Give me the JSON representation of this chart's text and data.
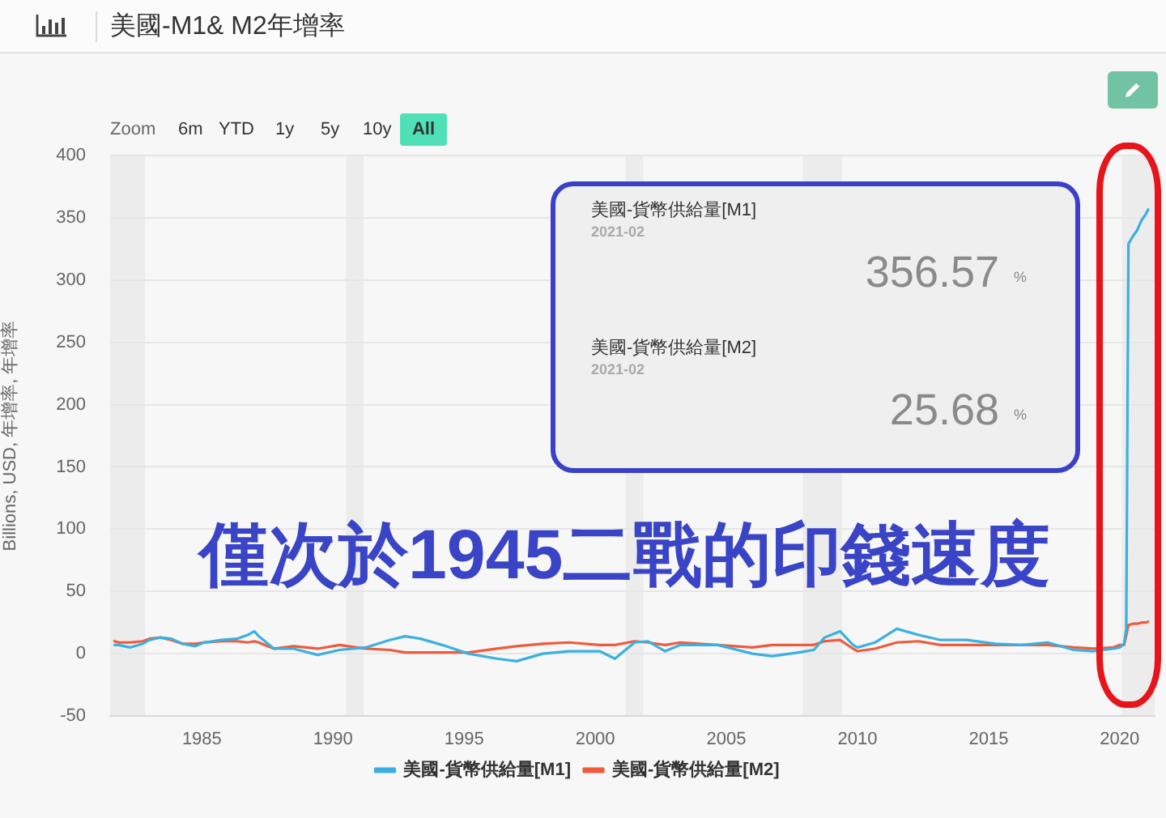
{
  "chart_data": {
    "type": "line",
    "title": "美國-M1& M2年增率",
    "ylabel": "Billions, USD, 年增率, 年增率",
    "x": [
      "1981-09",
      "1981-11",
      "1982-04",
      "1982-10",
      "1983-01",
      "1983-06",
      "1983-11",
      "1984-04",
      "1984-10",
      "1985-02",
      "1985-10",
      "1986-05",
      "1986-10",
      "1987-01",
      "1987-03",
      "1987-10",
      "1988-07",
      "1989-06",
      "1990-04",
      "1991-04",
      "1992-03",
      "1992-10",
      "1993-05",
      "1994-03",
      "1995-03",
      "1996-04",
      "1997-01",
      "1998-01",
      "1999-01",
      "2000-03",
      "2000-10",
      "2001-07",
      "2002-01",
      "2002-09",
      "2003-04",
      "2004-09",
      "2006-01",
      "2006-10",
      "2007-10",
      "2008-05",
      "2008-10",
      "2009-05",
      "2009-11",
      "2010-01",
      "2010-09",
      "2011-07",
      "2012-05",
      "2013-03",
      "2014-03",
      "2015-04",
      "2016-04",
      "2017-04",
      "2018-04",
      "2019-01",
      "2019-10",
      "2020-01",
      "2020-03",
      "2020-04",
      "2020-05",
      "2020-07",
      "2020-09",
      "2020-11",
      "2021-01",
      "2021-02"
    ],
    "series": [
      {
        "name": "美國-貨幣供給量[M1]",
        "color": "#3bb0e0",
        "values": [
          7,
          7,
          5,
          8,
          11,
          13,
          12,
          8,
          6,
          9,
          11,
          12,
          15,
          18,
          14,
          4,
          4,
          -1,
          3,
          5,
          11,
          14,
          12,
          7,
          0,
          -4,
          -6,
          0,
          2,
          2,
          -4,
          9,
          10,
          2,
          7,
          7,
          0,
          -2,
          1,
          3,
          13,
          18,
          7,
          5,
          9,
          20,
          15,
          11,
          11,
          8,
          7,
          9,
          3,
          2,
          4,
          5,
          8,
          20,
          329,
          335,
          340,
          348,
          353,
          356.57
        ]
      },
      {
        "name": "美國-貨幣供給量[M2]",
        "color": "#ef5b3c",
        "values": [
          10,
          9,
          9,
          10,
          12,
          13,
          11,
          8,
          8,
          9,
          10,
          10,
          9,
          10,
          9,
          4,
          6,
          4,
          7,
          4,
          3,
          1,
          1,
          1,
          1,
          4,
          6,
          8,
          9,
          7,
          7,
          10,
          9,
          7,
          9,
          7,
          5,
          7,
          7,
          7,
          10,
          11,
          4,
          2,
          4,
          9,
          10,
          7,
          7,
          7,
          7,
          7,
          5,
          4,
          5,
          7,
          7,
          15,
          23,
          24,
          24,
          25,
          25,
          25.68
        ]
      }
    ],
    "xlim": [
      "1981-07",
      "2021-05"
    ],
    "xticks": [
      "1985",
      "1990",
      "1995",
      "2000",
      "2005",
      "2010",
      "2015",
      "2020"
    ],
    "ylim": [
      -50,
      400
    ],
    "yticks": [
      -50,
      0,
      50,
      100,
      150,
      200,
      250,
      300,
      350,
      400
    ],
    "grid": "y",
    "legend": "bottom",
    "bands": [
      {
        "axis": "x",
        "from": "1981-07",
        "to": "1982-11",
        "color": "#ececec"
      },
      {
        "axis": "x",
        "from": "1990-07",
        "to": "1991-03",
        "color": "#ececec"
      },
      {
        "axis": "x",
        "from": "2001-03",
        "to": "2001-11",
        "color": "#ececec"
      },
      {
        "axis": "x",
        "from": "2007-12",
        "to": "2009-06",
        "color": "#ececec"
      },
      {
        "axis": "x",
        "from": "2020-02",
        "to": "2021-05",
        "color": "#ececec"
      }
    ],
    "annotations": [
      "Zoom",
      "6m",
      "YTD",
      "1y",
      "5y",
      "10y",
      "All",
      "美國-貨幣供給量[M1]",
      "2021-02",
      "356.57",
      "%",
      "美國-貨幣供給量[M2]",
      "2021-02",
      "25.68",
      "%",
      "僅次於1945二戰的印錢速度"
    ]
  }
}
